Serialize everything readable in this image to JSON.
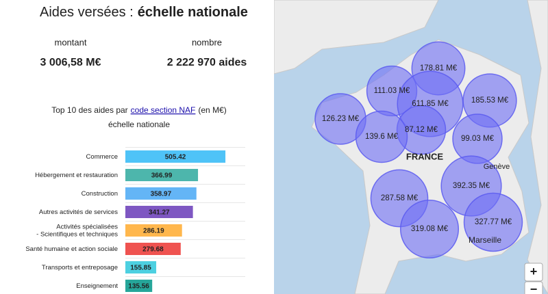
{
  "header": {
    "title_prefix": "Aides versées :",
    "title_bold": "échelle nationale"
  },
  "stats": [
    {
      "label": "montant",
      "value": "3 006,58 M€"
    },
    {
      "label": "nombre",
      "value": "2 222 970 aides"
    }
  ],
  "chart_data": {
    "type": "bar",
    "title_prefix": "Top 10 des aides par",
    "title_link": "code section NAF",
    "title_suffix": "(en M€)",
    "subtitle": "échelle nationale",
    "categories": [
      "Commerce",
      "Hébergement et restauration",
      "Construction",
      "Autres activités de services",
      "Activités spécialisées\n- Scientifiques et techniques",
      "Santé humaine et action sociale",
      "Transports et entreposage",
      "Enseignement"
    ],
    "values": [
      505.42,
      366.99,
      358.97,
      341.27,
      286.19,
      279.68,
      155.85,
      135.56
    ],
    "colors": [
      "#4fc3f7",
      "#4db6ac",
      "#64b5f6",
      "#7e57c2",
      "#ffb74d",
      "#ef5350",
      "#4dd0e1",
      "#26a69a"
    ]
  },
  "map": {
    "country_label": "FRANCE",
    "place_labels": [
      "Genève",
      "Marseille"
    ],
    "values": [
      178.81,
      111.03,
      611.85,
      185.53,
      126.23,
      87.12,
      139.6,
      99.03,
      392.35,
      287.58,
      319.08,
      327.77
    ],
    "value_labels": [
      "178.81 M€",
      "111.03 M€",
      "611.85 M€",
      "185.53 M€",
      "126.23 M€",
      "87.12 M€",
      "139.6 M€",
      "99.03 M€",
      "392.35 M€",
      "287.58 M€",
      "319.08 M€",
      "327.77 M€"
    ],
    "zoom_in": "+",
    "zoom_out": "−"
  }
}
